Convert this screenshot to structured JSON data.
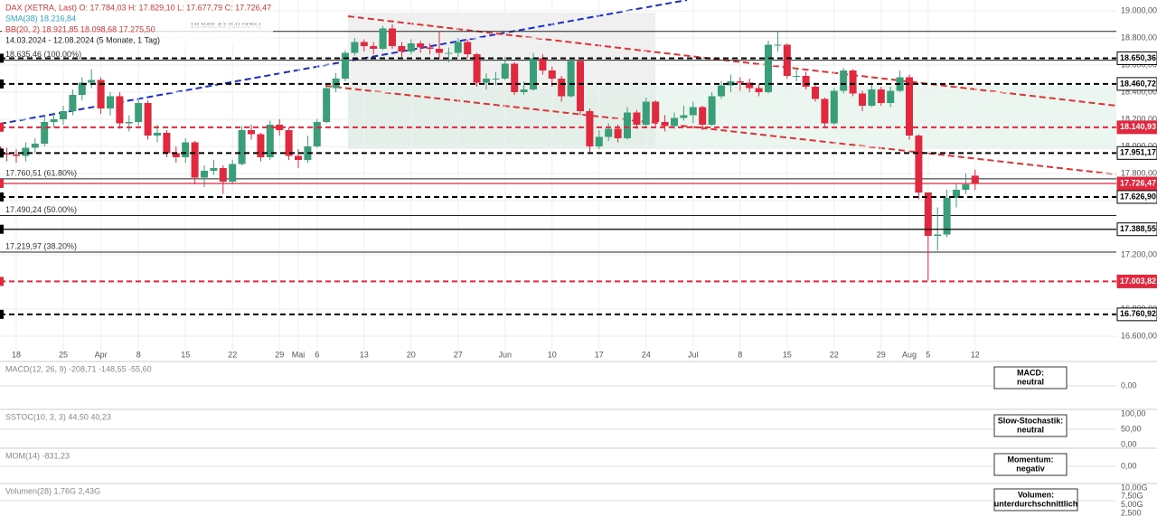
{
  "chart_data": {
    "type": "candlestick",
    "legend": [
      "DAX (XETRA, Last)  O: 17.784,03  H: 17.829,10  L: 17.677,79  C: 17.726,47",
      "SMA(38)  18.216,84",
      "BB(20, 2)  18.921,85  18.098,68  17.275,50",
      "14.03.2024 - 12.08.2024  (5 Monate, 1 Tag)"
    ],
    "up_color": "#3a9e78",
    "down_color": "#e0283e",
    "categories": [
      null,
      null,
      "18",
      null,
      null,
      null,
      null,
      "25",
      null,
      null,
      null,
      "Apr",
      null,
      null,
      null,
      "8",
      null,
      null,
      null,
      null,
      "15",
      null,
      null,
      null,
      null,
      "22",
      null,
      null,
      null,
      null,
      "29",
      null,
      "Mai",
      null,
      "6",
      null,
      null,
      null,
      null,
      "13",
      null,
      null,
      null,
      null,
      "20",
      null,
      null,
      null,
      null,
      "27",
      null,
      null,
      null,
      null,
      "Jun",
      null,
      null,
      null,
      null,
      "10",
      null,
      null,
      null,
      null,
      "17",
      null,
      null,
      null,
      null,
      "24",
      null,
      null,
      null,
      null,
      "Jul",
      null,
      null,
      null,
      null,
      "8",
      null,
      null,
      null,
      null,
      "15",
      null,
      null,
      null,
      null,
      "22",
      null,
      null,
      null,
      null,
      "29",
      null,
      null,
      "Aug",
      null,
      "5",
      null,
      null,
      null,
      null,
      "12"
    ],
    "open": [
      18000,
      17950,
      17940,
      17930,
      17990,
      18020,
      18180,
      18200,
      18260,
      18380,
      18470,
      18490,
      18280,
      18370,
      18170,
      18180,
      18320,
      18080,
      18100,
      17950,
      17920,
      18030,
      17770,
      17820,
      17840,
      17740,
      17870,
      18120,
      18090,
      17920,
      18160,
      18120,
      17930,
      17900,
      18000,
      18180,
      18430,
      18500,
      18690,
      18770,
      18740,
      18720,
      18870,
      18740,
      18700,
      18760,
      18730,
      18720,
      18690,
      18690,
      18770,
      18680,
      18470,
      18500,
      18500,
      18610,
      18400,
      18420,
      18650,
      18560,
      18500,
      18370,
      18630,
      18260,
      18000,
      18070,
      18130,
      18060,
      18250,
      18160,
      18330,
      18180,
      18150,
      18210,
      18230,
      18290,
      18160,
      18370,
      18450,
      18480,
      18470,
      18430,
      18400,
      18750,
      18750,
      18520,
      18520,
      18440,
      18350,
      18170,
      18410,
      18560,
      18390,
      18300,
      18420,
      18320,
      18410,
      18510,
      18080,
      17660,
      17340,
      17350,
      17620,
      17680,
      17784.03
    ],
    "high": [
      18040,
      17990,
      17980,
      18030,
      18060,
      18230,
      18250,
      18300,
      18420,
      18510,
      18570,
      18510,
      18400,
      18400,
      18230,
      18350,
      18340,
      18160,
      18120,
      18000,
      18060,
      18040,
      17860,
      17900,
      17860,
      17900,
      18150,
      18160,
      18100,
      18190,
      18200,
      18140,
      17980,
      18080,
      18200,
      18450,
      18540,
      18710,
      18800,
      18790,
      18770,
      18890,
      18900,
      18770,
      18790,
      18780,
      18760,
      18850,
      18730,
      18800,
      18790,
      18690,
      18540,
      18550,
      18660,
      18620,
      18480,
      18690,
      18680,
      18590,
      18520,
      18650,
      18640,
      18280,
      18120,
      18170,
      18160,
      18290,
      18270,
      18360,
      18340,
      18230,
      18250,
      18300,
      18330,
      18300,
      18400,
      18480,
      18530,
      18510,
      18500,
      18460,
      18780,
      18850,
      18760,
      18580,
      18550,
      18470,
      18360,
      18430,
      18580,
      18570,
      18410,
      18460,
      18440,
      18440,
      18560,
      18530,
      18090,
      17660,
      17550,
      17680,
      17730,
      17800,
      17829.1
    ],
    "low": [
      17900,
      17890,
      17880,
      17890,
      17950,
      18000,
      18140,
      18160,
      18230,
      18340,
      18430,
      18240,
      18230,
      18130,
      18110,
      18150,
      18050,
      18030,
      17920,
      17880,
      17880,
      17720,
      17700,
      17790,
      17650,
      17720,
      17860,
      18050,
      17890,
      17900,
      18080,
      17900,
      17840,
      17880,
      17990,
      18170,
      18400,
      18480,
      18670,
      18700,
      18680,
      18710,
      18720,
      18660,
      18680,
      18690,
      18680,
      18650,
      18620,
      18660,
      18650,
      18440,
      18420,
      18450,
      18490,
      18380,
      18380,
      18410,
      18530,
      18440,
      18330,
      18360,
      18230,
      17960,
      17980,
      18040,
      18030,
      18050,
      18130,
      18150,
      18150,
      18110,
      18130,
      18190,
      18170,
      18120,
      18150,
      18350,
      18400,
      18410,
      18400,
      18370,
      18390,
      18700,
      18500,
      18480,
      18420,
      18330,
      18140,
      18160,
      18390,
      18370,
      18260,
      18290,
      18300,
      18290,
      18400,
      18050,
      17610,
      17010,
      17230,
      17330,
      17550,
      17650,
      17677.79
    ],
    "close": [
      17950,
      17940,
      17930,
      17990,
      18020,
      18180,
      18200,
      18260,
      18380,
      18470,
      18490,
      18280,
      18370,
      18170,
      18180,
      18320,
      18080,
      18100,
      17950,
      17920,
      18030,
      17770,
      17820,
      17840,
      17740,
      17870,
      18120,
      18090,
      17920,
      18160,
      18120,
      17930,
      17900,
      18000,
      18180,
      18430,
      18500,
      18690,
      18770,
      18740,
      18720,
      18870,
      18740,
      18700,
      18760,
      18730,
      18720,
      18690,
      18690,
      18770,
      18680,
      18470,
      18500,
      18500,
      18610,
      18400,
      18420,
      18650,
      18560,
      18500,
      18370,
      18630,
      18260,
      18000,
      18070,
      18130,
      18060,
      18250,
      18160,
      18330,
      18180,
      18150,
      18210,
      18230,
      18290,
      18160,
      18370,
      18450,
      18480,
      18470,
      18430,
      18400,
      18750,
      18750,
      18520,
      18520,
      18440,
      18350,
      18170,
      18410,
      18560,
      18390,
      18300,
      18420,
      18320,
      18410,
      18510,
      18080,
      17660,
      17340,
      17350,
      17620,
      17680,
      17720,
      17726.47
    ],
    "ylim": [
      16480,
      19080
    ],
    "yticks": [
      {
        "value": 19000,
        "label": "19.000,00"
      },
      {
        "value": 18800,
        "label": "18.800,00"
      },
      {
        "value": 18600,
        "label": "18.600,00"
      },
      {
        "value": 18400,
        "label": "18.400,00"
      },
      {
        "value": 18200,
        "label": "18.200,00"
      },
      {
        "value": 18000,
        "label": "18.000,00"
      },
      {
        "value": 17800,
        "label": "17.800,00"
      },
      {
        "value": 17600,
        "label": "17.600,00"
      },
      {
        "value": 17400,
        "label": "17.400,00"
      },
      {
        "value": 17200,
        "label": "17.200,00"
      },
      {
        "value": 17000,
        "label": "17.000,00"
      },
      {
        "value": 16800,
        "label": "16.800,00"
      },
      {
        "value": 16600,
        "label": "16.600,00"
      }
    ],
    "levels": [
      {
        "value": 18650.36,
        "label": "18.650,36",
        "color": "#000000",
        "dash": true
      },
      {
        "value": 18460.72,
        "label": "18.460,72",
        "color": "#000000",
        "dash": true
      },
      {
        "value": 18140.93,
        "label": "18.140,93",
        "color": "#e0283e",
        "dash": true
      },
      {
        "value": 17951.17,
        "label": "17.951,17",
        "color": "#000000",
        "dash": true
      },
      {
        "value": 17726.47,
        "label": "17.726,47",
        "color": "#e0283e",
        "dash": false
      },
      {
        "value": 17626.9,
        "label": "17.626,90",
        "color": "#000000",
        "dash": true
      },
      {
        "value": 17388.55,
        "label": "17.388,55",
        "color": "#000000",
        "dash": false
      },
      {
        "value": 17003.82,
        "label": "17.003,82",
        "color": "#e0283e",
        "dash": true
      },
      {
        "value": 16760.92,
        "label": "16.760,92",
        "color": "#000000",
        "dash": true
      }
    ],
    "fib_levels": [
      {
        "value": 18848.43,
        "label": "18.848,43 (50.00%)"
      },
      {
        "value": 18635.46,
        "label": "18.635,46 (100.00%)"
      },
      {
        "value": 17760.51,
        "label": "17.760,51 (61.80%)"
      },
      {
        "value": 17490.24,
        "label": "17.490,24 (50.00%)"
      },
      {
        "value": 17219.97,
        "label": "17.219,97 (38.20%)"
      }
    ],
    "panels": [
      {
        "title": "MACD(12, 26, 9)  -208,71  -148,55  -55,60",
        "status": [
          "MACD:",
          "neutral"
        ],
        "axis_labels": [
          "0,00"
        ]
      },
      {
        "title": "SSTOC(10, 3, 3)  44,50  40,23",
        "status": [
          "Slow-Stochastik:",
          "neutral"
        ],
        "axis_labels": [
          "100,00",
          "50,00",
          "0,00"
        ]
      },
      {
        "title": "MOM(14)  -831,23",
        "status": [
          "Momentum:",
          "negativ"
        ],
        "axis_labels": [
          "0,00"
        ]
      },
      {
        "title": "Volumen(28)  1,76G  2,43G",
        "status": [
          "Volumen:",
          "unterdurchschnittlich"
        ],
        "axis_labels": [
          "10,00G",
          "7,50G",
          "5,00G",
          "2,500"
        ]
      }
    ]
  }
}
